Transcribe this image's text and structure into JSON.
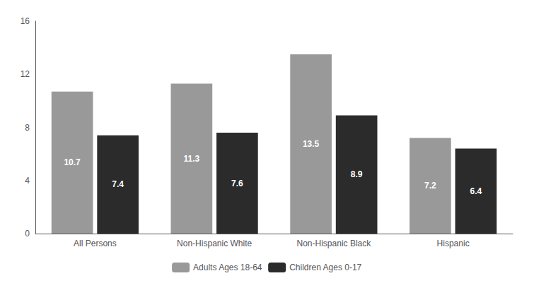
{
  "chart_data": {
    "type": "bar",
    "categories": [
      "All Persons",
      "Non-Hispanic White",
      "Non-Hispanic Black",
      "Hispanic"
    ],
    "series": [
      {
        "name": "Adults Ages 18-64",
        "color": "#999999",
        "values": [
          10.7,
          11.3,
          13.5,
          7.2
        ]
      },
      {
        "name": "Children Ages 0-17",
        "color": "#2b2b2b",
        "values": [
          7.4,
          7.6,
          8.9,
          6.4
        ]
      }
    ],
    "ylim": [
      0,
      16
    ],
    "yticks": [
      0,
      4,
      8,
      12,
      16
    ],
    "grid": false,
    "legend": "bottom",
    "data_labels": true
  }
}
